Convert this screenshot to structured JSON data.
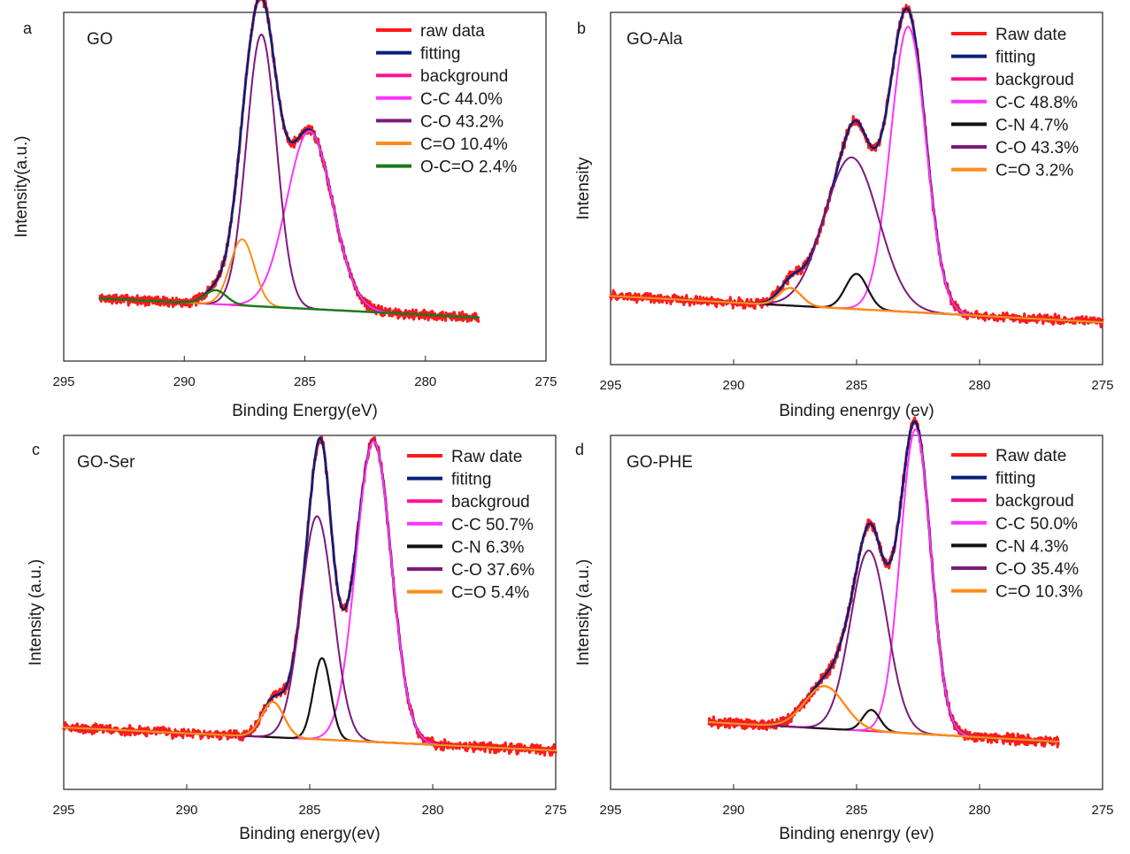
{
  "figure": {
    "background": "#ffffff"
  },
  "chart_data": [
    {
      "type": "line",
      "panel_letter": "a",
      "title": "GO",
      "xlabel": "Binding Energy(eV)",
      "ylabel": "Intensity(a.u.)",
      "xlim": [
        295,
        275
      ],
      "ylim": [
        0,
        1
      ],
      "xticks": [
        295,
        290,
        285,
        280,
        275
      ],
      "x_range": [
        293.5,
        277.8
      ],
      "legend_position": "top-right",
      "series": [
        {
          "name": "raw data",
          "color": "#ff1a1a",
          "kind": "raw",
          "width": 3,
          "bg": [
            0.18,
            0.125
          ],
          "peaks": [
            [
              288.7,
              0.04,
              0.45
            ],
            [
              287.6,
              0.19,
              0.5
            ],
            [
              286.8,
              0.78,
              0.62
            ],
            [
              284.8,
              0.51,
              0.95
            ]
          ]
        },
        {
          "name": "fitting",
          "color": "#0a1f7a",
          "kind": "fit",
          "width": 2.6,
          "bg": [
            0.18,
            0.125
          ],
          "peaks": [
            [
              288.7,
              0.04,
              0.45
            ],
            [
              287.6,
              0.19,
              0.5
            ],
            [
              286.8,
              0.78,
              0.62
            ],
            [
              284.8,
              0.51,
              0.95
            ]
          ]
        },
        {
          "name": "background",
          "color": "#ff1493",
          "kind": "background",
          "width": 2,
          "bg": [
            0.18,
            0.125
          ],
          "peaks": []
        },
        {
          "name": "C-C 44.0%",
          "color": "#ff33ff",
          "kind": "component",
          "width": 2,
          "bg": [
            0.18,
            0.125
          ],
          "peaks": [
            [
              284.8,
              0.51,
              0.95
            ]
          ]
        },
        {
          "name": "C-O 43.2%",
          "color": "#7b1a7b",
          "kind": "component",
          "width": 2,
          "bg": [
            0.18,
            0.125
          ],
          "peaks": [
            [
              286.8,
              0.78,
              0.62
            ]
          ]
        },
        {
          "name": "C=O 10.4%",
          "color": "#ff8c1a",
          "kind": "component",
          "width": 2,
          "bg": [
            0.18,
            0.125
          ],
          "peaks": [
            [
              287.6,
              0.19,
              0.5
            ]
          ]
        },
        {
          "name": "O-C=O 2.4%",
          "color": "#1a7a1a",
          "kind": "component",
          "width": 2.4,
          "bg": [
            0.18,
            0.125
          ],
          "peaks": [
            [
              288.7,
              0.04,
              0.45
            ]
          ]
        }
      ]
    },
    {
      "type": "line",
      "panel_letter": "b",
      "title": "GO-Ala",
      "xlabel": "Binding enenrgy (ev)",
      "ylabel": "Intensity",
      "xlim": [
        295,
        275
      ],
      "ylim": [
        0,
        1
      ],
      "xticks": [
        295,
        290,
        285,
        280,
        275
      ],
      "x_range": [
        295,
        275
      ],
      "legend_position": "top-right",
      "series": [
        {
          "name": "Raw date",
          "color": "#ff1a1a",
          "kind": "raw",
          "width": 3,
          "bg": [
            0.195,
            0.12
          ],
          "peaks": [
            [
              287.7,
              0.05,
              0.45
            ],
            [
              285.0,
              0.1,
              0.45
            ],
            [
              285.2,
              0.43,
              1.1
            ],
            [
              282.9,
              0.81,
              0.72
            ]
          ]
        },
        {
          "name": "fitting",
          "color": "#0a1f7a",
          "kind": "fit",
          "width": 2.6,
          "bg": [
            0.195,
            0.12
          ],
          "peaks": [
            [
              287.7,
              0.05,
              0.45
            ],
            [
              285.0,
              0.1,
              0.45
            ],
            [
              285.2,
              0.43,
              1.1
            ],
            [
              282.9,
              0.81,
              0.72
            ]
          ]
        },
        {
          "name": "backgroud",
          "color": "#ff1493",
          "kind": "background",
          "width": 2,
          "bg": [
            0.195,
            0.12
          ],
          "peaks": []
        },
        {
          "name": "C-C 48.8%",
          "color": "#ff33ff",
          "kind": "component",
          "width": 2,
          "bg": [
            0.195,
            0.12
          ],
          "peaks": [
            [
              282.9,
              0.81,
              0.72
            ]
          ]
        },
        {
          "name": "C-N 4.7%",
          "color": "#111111",
          "kind": "component",
          "width": 2.2,
          "bg": [
            0.195,
            0.12
          ],
          "peaks": [
            [
              285.0,
              0.1,
              0.45
            ]
          ]
        },
        {
          "name": "C-O 43.3%",
          "color": "#7b1a7b",
          "kind": "component",
          "width": 2,
          "bg": [
            0.195,
            0.12
          ],
          "peaks": [
            [
              285.2,
              0.43,
              1.1
            ]
          ]
        },
        {
          "name": "C=O 3.2%",
          "color": "#ff8c1a",
          "kind": "background",
          "width": 2.4,
          "bg": [
            0.195,
            0.12
          ],
          "peaks": [
            [
              287.7,
              0.05,
              0.45
            ]
          ]
        }
      ]
    },
    {
      "type": "line",
      "panel_letter": "c",
      "title": "GO-Ser",
      "xlabel": "Binding energy(ev)",
      "ylabel": "Intensity (a.u.)",
      "xlim": [
        295,
        275
      ],
      "ylim": [
        0,
        1
      ],
      "xticks": [
        295,
        290,
        285,
        280,
        275
      ],
      "x_range": [
        295,
        275
      ],
      "legend_position": "top-right",
      "series": [
        {
          "name": "Raw date",
          "color": "#ff1a1a",
          "kind": "raw",
          "width": 3,
          "bg": [
            0.175,
            0.11
          ],
          "peaks": [
            [
              286.5,
              0.1,
              0.45
            ],
            [
              284.5,
              0.23,
              0.35
            ],
            [
              284.7,
              0.63,
              0.65
            ],
            [
              282.4,
              0.85,
              0.72
            ]
          ]
        },
        {
          "name": "fititng",
          "color": "#0a1f7a",
          "kind": "fit",
          "width": 2.6,
          "bg": [
            0.175,
            0.11
          ],
          "peaks": [
            [
              286.5,
              0.1,
              0.45
            ],
            [
              284.5,
              0.23,
              0.35
            ],
            [
              284.7,
              0.63,
              0.65
            ],
            [
              282.4,
              0.85,
              0.72
            ]
          ]
        },
        {
          "name": "backgroud",
          "color": "#ff1493",
          "kind": "background",
          "width": 2,
          "bg": [
            0.175,
            0.11
          ],
          "peaks": []
        },
        {
          "name": "C-C 50.7%",
          "color": "#ff33ff",
          "kind": "component",
          "width": 2,
          "bg": [
            0.175,
            0.11
          ],
          "peaks": [
            [
              282.4,
              0.85,
              0.72
            ]
          ]
        },
        {
          "name": "C-N 6.3%",
          "color": "#111111",
          "kind": "component",
          "width": 2.2,
          "bg": [
            0.175,
            0.11
          ],
          "peaks": [
            [
              284.5,
              0.23,
              0.35
            ]
          ]
        },
        {
          "name": "C-O 37.6%",
          "color": "#7b1a7b",
          "kind": "component",
          "width": 2,
          "bg": [
            0.175,
            0.11
          ],
          "peaks": [
            [
              284.7,
              0.63,
              0.65
            ]
          ]
        },
        {
          "name": "C=O 5.4%",
          "color": "#ff8c1a",
          "kind": "background",
          "width": 2.4,
          "bg": [
            0.175,
            0.11
          ],
          "peaks": [
            [
              286.5,
              0.1,
              0.45
            ]
          ]
        }
      ]
    },
    {
      "type": "line",
      "panel_letter": "d",
      "title": "GO-PHE",
      "xlabel": "Binding enenrgy (ev)",
      "ylabel": "Intensity (a.u.)",
      "xlim": [
        295,
        275
      ],
      "ylim": [
        0,
        1
      ],
      "xticks": [
        295,
        290,
        285,
        280,
        275
      ],
      "x_range": [
        291,
        276.8
      ],
      "legend_position": "top-right",
      "series": [
        {
          "name": "Raw date",
          "color": "#ff1a1a",
          "kind": "raw",
          "width": 3,
          "bg": [
            0.19,
            0.135
          ],
          "peaks": [
            [
              286.3,
              0.12,
              0.8
            ],
            [
              284.4,
              0.06,
              0.35
            ],
            [
              284.5,
              0.51,
              0.75
            ],
            [
              282.6,
              0.86,
              0.62
            ]
          ]
        },
        {
          "name": "fitting",
          "color": "#0a1f7a",
          "kind": "fit",
          "width": 2.6,
          "bg": [
            0.19,
            0.135
          ],
          "peaks": [
            [
              286.3,
              0.12,
              0.8
            ],
            [
              284.4,
              0.06,
              0.35
            ],
            [
              284.5,
              0.51,
              0.75
            ],
            [
              282.6,
              0.86,
              0.62
            ]
          ]
        },
        {
          "name": "backgroud",
          "color": "#ff1493",
          "kind": "background",
          "width": 2,
          "bg": [
            0.19,
            0.135
          ],
          "peaks": []
        },
        {
          "name": "C-C 50.0%",
          "color": "#ff33ff",
          "kind": "component",
          "width": 2,
          "bg": [
            0.19,
            0.135
          ],
          "peaks": [
            [
              282.6,
              0.86,
              0.62
            ]
          ]
        },
        {
          "name": "C-N 4.3%",
          "color": "#111111",
          "kind": "component",
          "width": 2.2,
          "bg": [
            0.19,
            0.135
          ],
          "peaks": [
            [
              284.4,
              0.06,
              0.35
            ]
          ]
        },
        {
          "name": "C-O 35.4%",
          "color": "#7b1a7b",
          "kind": "component",
          "width": 2,
          "bg": [
            0.19,
            0.135
          ],
          "peaks": [
            [
              284.5,
              0.51,
              0.75
            ]
          ]
        },
        {
          "name": "C=O 10.3%",
          "color": "#ff8c1a",
          "kind": "background",
          "width": 2.4,
          "bg": [
            0.19,
            0.135
          ],
          "peaks": [
            [
              286.3,
              0.12,
              0.8
            ]
          ]
        }
      ]
    }
  ]
}
